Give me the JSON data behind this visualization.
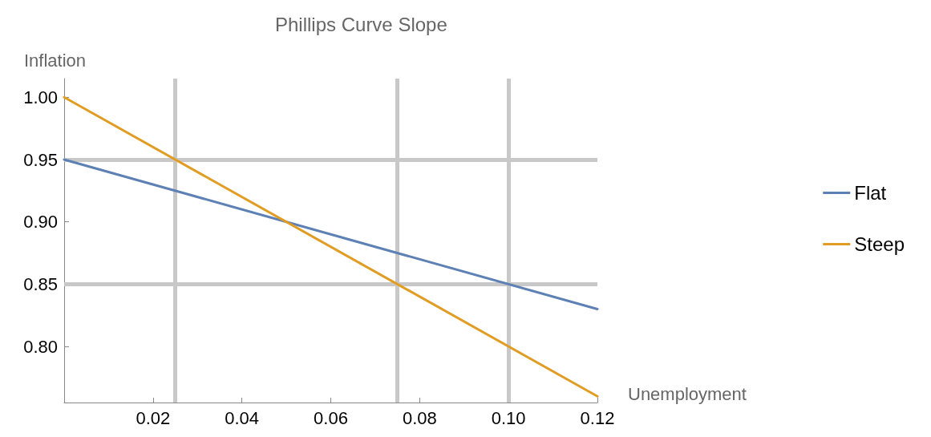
{
  "chart_data": {
    "type": "line",
    "title": "Phillips Curve Slope",
    "xlabel": "Unemployment",
    "ylabel": "Inflation",
    "x": [
      0,
      0.12
    ],
    "series": [
      {
        "name": "Flat",
        "color": "#5e81b5",
        "values": [
          0.95,
          0.83
        ]
      },
      {
        "name": "Steep",
        "color": "#e19c24",
        "values": [
          1.0,
          0.76
        ]
      }
    ],
    "xlim": [
      0,
      0.12
    ],
    "ylim": [
      0.755,
      1.015
    ],
    "xticks": [
      {
        "value": 0.02,
        "label": "0.02"
      },
      {
        "value": 0.04,
        "label": "0.04"
      },
      {
        "value": 0.06,
        "label": "0.06"
      },
      {
        "value": 0.08,
        "label": "0.08"
      },
      {
        "value": 0.1,
        "label": "0.10"
      },
      {
        "value": 0.12,
        "label": "0.12"
      }
    ],
    "yticks": [
      {
        "value": 0.8,
        "label": "0.80"
      },
      {
        "value": 0.85,
        "label": "0.85"
      },
      {
        "value": 0.9,
        "label": "0.90"
      },
      {
        "value": 0.95,
        "label": "0.95"
      },
      {
        "value": 1.0,
        "label": "1.00"
      }
    ],
    "ref_lines": [
      {
        "axis": "x",
        "value": 0.025,
        "color": "#c8c8c8"
      },
      {
        "axis": "x",
        "value": 0.075,
        "color": "#c8c8c8"
      },
      {
        "axis": "x",
        "value": 0.1,
        "color": "#c8c8c8"
      },
      {
        "axis": "y",
        "value": 0.95,
        "color": "#c8c8c8"
      },
      {
        "axis": "y",
        "value": 0.85,
        "color": "#c8c8c8"
      }
    ],
    "grid": false,
    "legend": "right",
    "marker": "none",
    "line_style": "solid"
  }
}
